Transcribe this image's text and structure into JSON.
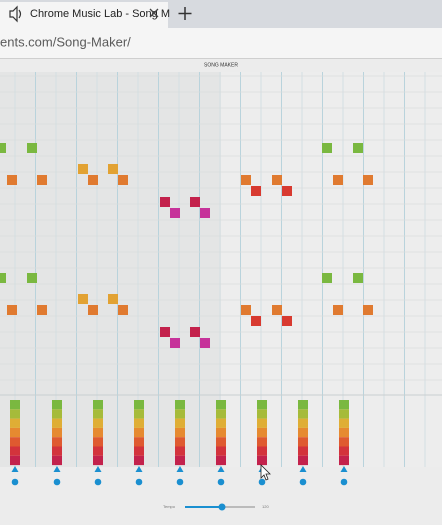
{
  "browser": {
    "tab_title": "Chrome Music Lab - Song M",
    "url": "ents.com/Song-Maker/"
  },
  "header": {
    "title": "SONG MAKER"
  },
  "footer": {
    "tempo_label": "Tempo",
    "tempo_value": "120"
  }
}
